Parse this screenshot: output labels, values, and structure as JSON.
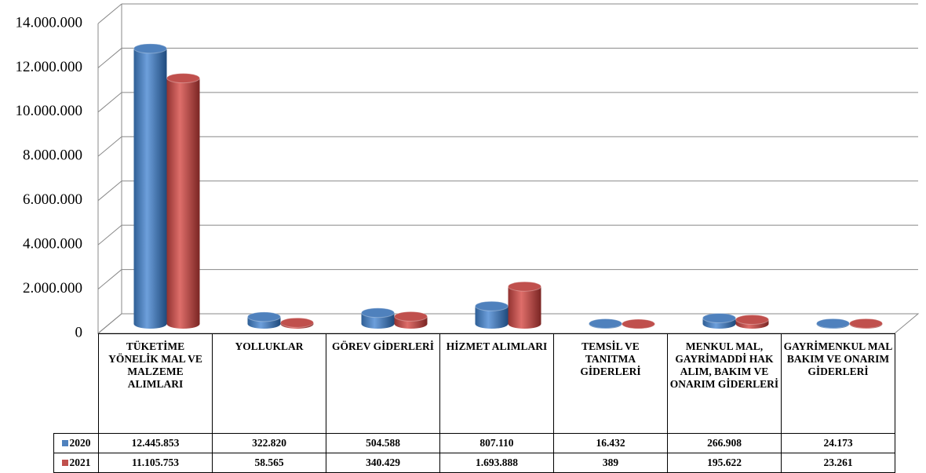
{
  "chart_data": {
    "type": "bar",
    "categories": [
      "TÜKETİME YÖNELİK MAL VE MALZEME ALIMLARI",
      "YOLLUKLAR",
      "GÖREV GİDERLERİ",
      "HİZMET ALIMLARI",
      "TEMSİL VE TANITMA GİDERLERİ",
      "MENKUL MAL, GAYRİMADDİ HAK ALIM, BAKIM VE ONARIM GİDERLERİ",
      "GAYRİMENKUL MAL BAKIM VE ONARIM GİDERLERİ"
    ],
    "series": [
      {
        "name": "2020",
        "color": "#4f81bd",
        "values": [
          12445853,
          322820,
          504588,
          807110,
          16432,
          266908,
          24173
        ],
        "value_labels": [
          "12.445.853",
          "322.820",
          "504.588",
          "807.110",
          "16.432",
          "266.908",
          "24.173"
        ]
      },
      {
        "name": "2021",
        "color": "#c0504d",
        "values": [
          11105753,
          58565,
          340429,
          1693888,
          389,
          195622,
          23261
        ],
        "value_labels": [
          "11.105.753",
          "58.565",
          "340.429",
          "1.693.888",
          "389",
          "195.622",
          "23.261"
        ]
      }
    ],
    "ylim": [
      0,
      14000000
    ],
    "yticks": [
      0,
      {
        "value": 2000000,
        "label": "2.000.000"
      },
      {
        "value": 4000000,
        "label": "4.000.000"
      },
      {
        "value": 6000000,
        "label": "6.000.000"
      },
      {
        "value": 8000000,
        "label": "8.000.000"
      },
      {
        "value": 10000000,
        "label": "10.000.000"
      },
      {
        "value": 12000000,
        "label": "12.000.000"
      },
      {
        "value": 14000000,
        "label": "14.000.000"
      }
    ],
    "grid": true
  }
}
